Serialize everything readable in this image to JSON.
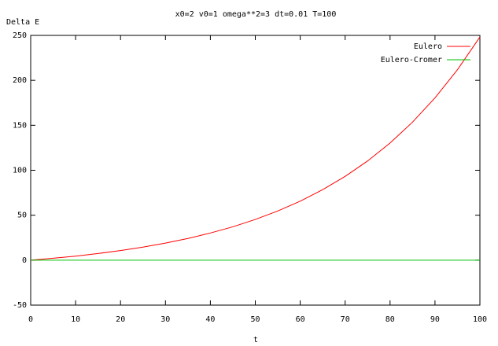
{
  "chart_data": {
    "type": "line",
    "title": "x0=2 v0=1 omega**2=3 dt=0.01 T=100",
    "y_label": "Delta E",
    "x_label": "t",
    "x": [
      0,
      5,
      10,
      15,
      20,
      25,
      30,
      35,
      40,
      45,
      50,
      55,
      60,
      65,
      70,
      75,
      80,
      85,
      90,
      95,
      100
    ],
    "series": [
      {
        "name": "Eulero",
        "color": "#ff0000",
        "values": [
          0,
          2.1,
          4.5,
          7.4,
          10.7,
          14.5,
          19,
          24.1,
          30.2,
          37.1,
          45.3,
          54.7,
          65.6,
          78.4,
          93.2,
          110.3,
          130.3,
          153.5,
          180.5,
          211.8,
          248.2
        ]
      },
      {
        "name": "Eulero-Cromer",
        "color": "#00c000",
        "values": [
          0,
          0,
          0,
          0,
          0,
          0,
          0,
          0,
          0,
          0,
          0,
          0,
          0,
          0,
          0,
          0,
          0,
          0,
          0,
          0,
          0
        ]
      }
    ],
    "xlim": [
      0,
      100
    ],
    "xticks": [
      0,
      10,
      20,
      30,
      40,
      50,
      60,
      70,
      80,
      90,
      100
    ],
    "ylim": [
      -50,
      250
    ],
    "yticks": [
      -50,
      0,
      50,
      100,
      150,
      200,
      250
    ],
    "grid": false,
    "legend": "top-right"
  }
}
